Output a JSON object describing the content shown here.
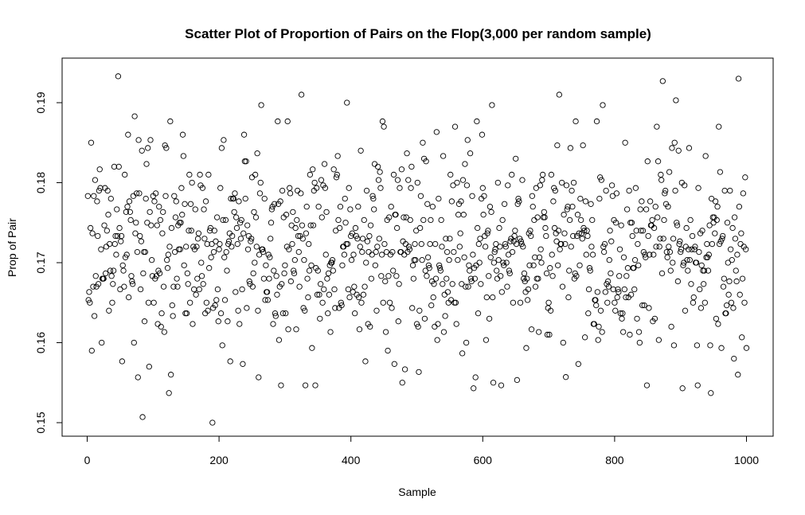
{
  "chart_data": {
    "type": "scatter",
    "title": "Scatter Plot of Proportion of Pairs on the Flop(3,000 per random sample)",
    "xlabel": "Sample",
    "ylabel": "Prop of Pair",
    "xlim": [
      0,
      1000
    ],
    "ylim": [
      0.15,
      0.19
    ],
    "x_ticks": [
      "0",
      "200",
      "400",
      "600",
      "800",
      "1000"
    ],
    "y_ticks": [
      "0.15",
      "0.16",
      "0.17",
      "0.18",
      "0.19"
    ],
    "grid": false,
    "legend": "none",
    "marker": "open-circle",
    "n_points": 1000,
    "summary": {
      "mean": 0.172,
      "min": 0.15,
      "max": 0.1933
    },
    "notable_points": [
      {
        "x": 6,
        "y": 0.185
      },
      {
        "x": 47,
        "y": 0.1933
      },
      {
        "x": 62,
        "y": 0.186
      },
      {
        "x": 72,
        "y": 0.1883
      },
      {
        "x": 84,
        "y": 0.1507
      },
      {
        "x": 124,
        "y": 0.1537
      },
      {
        "x": 190,
        "y": 0.15
      },
      {
        "x": 264,
        "y": 0.1897
      },
      {
        "x": 325,
        "y": 0.191
      },
      {
        "x": 394,
        "y": 0.19
      },
      {
        "x": 450,
        "y": 0.187
      },
      {
        "x": 586,
        "y": 0.1543
      },
      {
        "x": 614,
        "y": 0.1897
      },
      {
        "x": 716,
        "y": 0.191
      },
      {
        "x": 726,
        "y": 0.1557
      },
      {
        "x": 782,
        "y": 0.1897
      },
      {
        "x": 873,
        "y": 0.1927
      },
      {
        "x": 893,
        "y": 0.1903
      },
      {
        "x": 903,
        "y": 0.1543
      },
      {
        "x": 946,
        "y": 0.1537
      },
      {
        "x": 988,
        "y": 0.193
      }
    ]
  }
}
